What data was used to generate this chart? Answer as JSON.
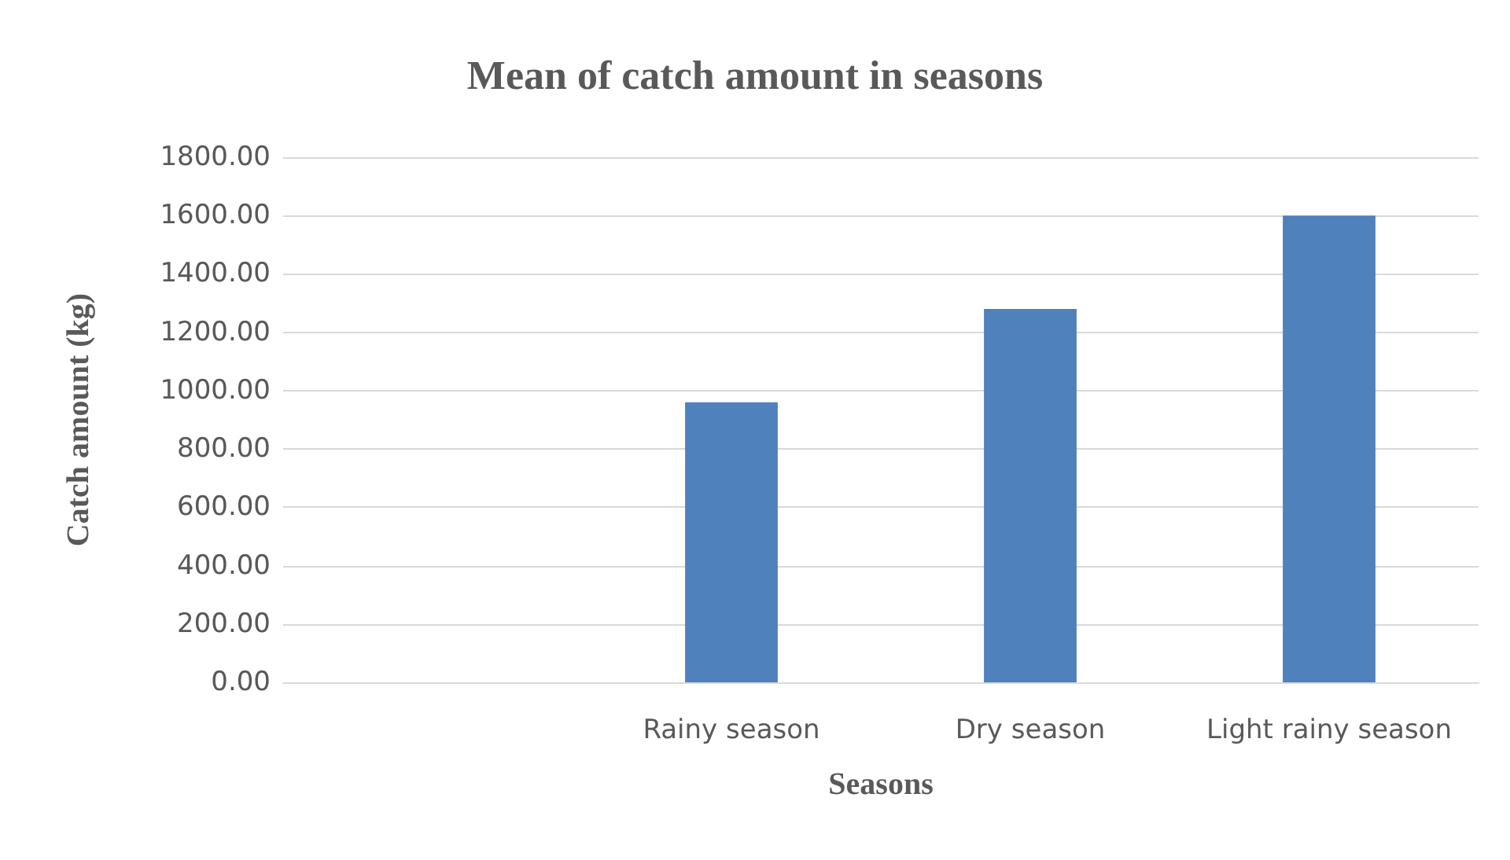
{
  "chart_data": {
    "type": "bar",
    "title": "Mean of catch amount in seasons",
    "xlabel": "Seasons",
    "ylabel": "Catch amount (kg)",
    "categories": [
      null,
      "Rainy season",
      "Dry season",
      "Light rainy season"
    ],
    "values": [
      null,
      960,
      1280,
      1600
    ],
    "color": "#4f81bd",
    "ylim": [
      0,
      1800
    ],
    "yticks": [
      {
        "value": 0,
        "label": "0.00"
      },
      {
        "value": 200,
        "label": "200.00"
      },
      {
        "value": 400,
        "label": "400.00"
      },
      {
        "value": 600,
        "label": "600.00"
      },
      {
        "value": 800,
        "label": "800.00"
      },
      {
        "value": 1000,
        "label": "1000.00"
      },
      {
        "value": 1200,
        "label": "1200.00"
      },
      {
        "value": 1400,
        "label": "1400.00"
      },
      {
        "value": 1600,
        "label": "1600.00"
      },
      {
        "value": 1800,
        "label": "1800.00"
      }
    ],
    "grid": "y"
  }
}
